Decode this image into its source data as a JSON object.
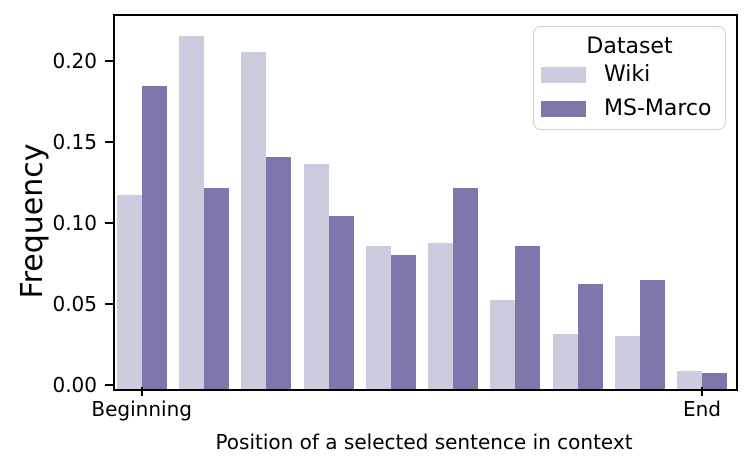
{
  "chart_data": {
    "type": "bar",
    "title": "",
    "xlabel": "Position of a selected sentence in context",
    "ylabel": "Frequency",
    "categories": [
      "1",
      "2",
      "3",
      "4",
      "5",
      "6",
      "7",
      "8",
      "9",
      "10"
    ],
    "series": [
      {
        "name": "Wiki",
        "color": "#ccccdf",
        "values": [
          0.12,
          0.218,
          0.208,
          0.139,
          0.088,
          0.09,
          0.055,
          0.034,
          0.033,
          0.011
        ]
      },
      {
        "name": "MS-Marco",
        "color": "#7f77ab",
        "values": [
          0.187,
          0.124,
          0.143,
          0.107,
          0.083,
          0.124,
          0.088,
          0.065,
          0.067,
          0.01
        ]
      }
    ],
    "y_ticks": [
      0.0,
      0.05,
      0.1,
      0.15,
      0.2
    ],
    "y_tick_format": "0.00",
    "ylim": [
      0,
      0.228
    ],
    "x_tick_labels": [
      {
        "index": 0,
        "label": "Beginning"
      },
      {
        "index": 9,
        "label": "End"
      }
    ],
    "legend": {
      "title": "Dataset",
      "position": "upper-right"
    },
    "grid": false,
    "spine_color": "#000000"
  }
}
